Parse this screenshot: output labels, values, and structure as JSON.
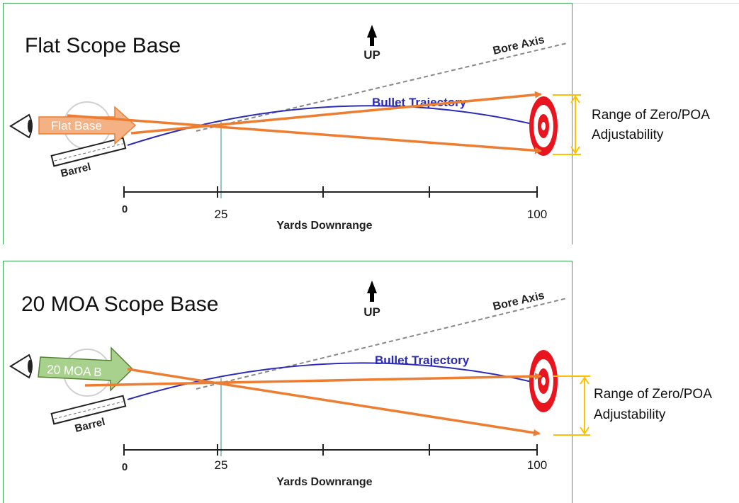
{
  "panels": [
    {
      "title": "Flat Scope Base",
      "up_label": "UP",
      "bore_axis_label": "Bore Axis",
      "trajectory_label": "Bullet Trajectory",
      "barrel_label": "Barrel",
      "base_label": "Flat Base",
      "base_color": "#f4b183",
      "axis_label": "Yards Downrange",
      "ticks": [
        "0",
        "25",
        "100"
      ],
      "note_lines": [
        "Range of Zero/POA",
        "Adjustability"
      ]
    },
    {
      "title": "20 MOA Scope Base",
      "up_label": "UP",
      "bore_axis_label": "Bore Axis",
      "trajectory_label": "Bullet Trajectory",
      "barrel_label": "Barrel",
      "base_label": "20 MOA B",
      "base_color": "#a9d18e",
      "axis_label": "Yards Downrange",
      "ticks": [
        "0",
        "25",
        "100"
      ],
      "note_lines": [
        "Range of Zero/POA",
        "Adjustability"
      ]
    }
  ],
  "colors": {
    "panel_border": "#3aa655",
    "orange_arrows": "#ed7d31",
    "bracket": "#ffc000",
    "trajectory": "#2b2bb8",
    "target_red": "#e8141e"
  }
}
